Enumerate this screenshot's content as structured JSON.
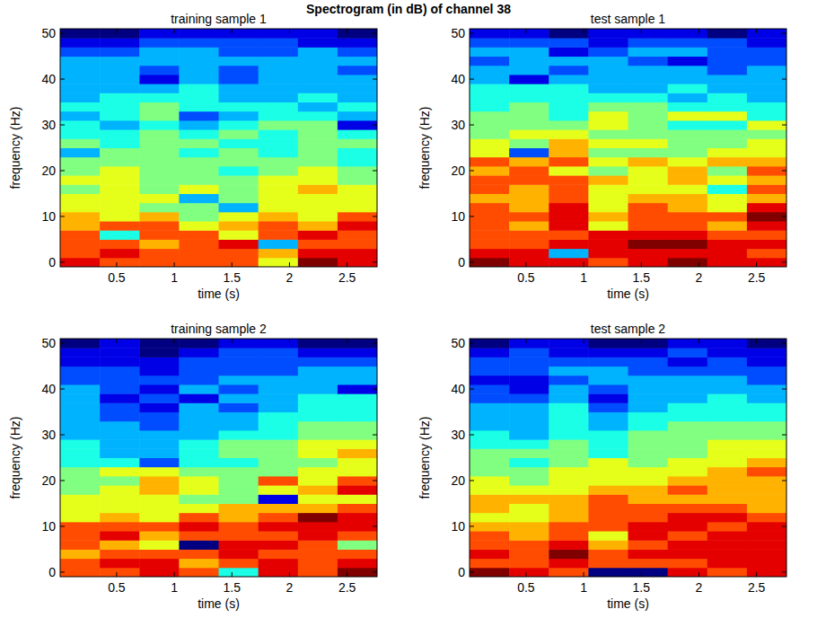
{
  "title": "Spectrogram (in dB) of channel 38",
  "chart_data": [
    {
      "type": "heatmap",
      "title": "training sample 1",
      "x_label": "time (s)",
      "y_label": "frequency (Hz)",
      "x": [
        0.182,
        0.526,
        0.87,
        1.213,
        1.557,
        1.901,
        2.245,
        2.588
      ],
      "y": [
        0,
        2,
        4,
        6,
        8,
        10,
        12,
        14,
        16,
        18,
        20,
        22,
        24,
        26,
        28,
        30,
        32,
        34,
        36,
        38,
        40,
        42,
        44,
        46,
        48,
        50
      ],
      "xlim": [
        0.01,
        2.76
      ],
      "ylim": [
        -1,
        51
      ],
      "xticks": [
        0.5,
        1,
        1.5,
        2,
        2.5
      ],
      "yticks": [
        0,
        10,
        20,
        30,
        40,
        50
      ],
      "color_range": [
        0,
        10
      ],
      "z": [
        [
          9,
          8,
          8,
          8,
          8,
          6,
          10,
          9
        ],
        [
          8,
          9,
          8,
          8,
          8,
          7,
          9,
          9
        ],
        [
          8,
          8,
          7,
          8,
          9,
          3,
          8,
          8
        ],
        [
          8,
          4,
          8,
          8,
          6,
          8,
          9,
          8
        ],
        [
          7,
          8,
          8,
          6,
          7,
          8,
          7,
          9
        ],
        [
          7,
          6,
          7,
          5,
          6,
          7,
          6,
          8
        ],
        [
          6,
          6,
          5,
          5,
          3,
          6,
          6,
          6
        ],
        [
          6,
          6,
          6,
          3,
          5,
          6,
          6,
          6
        ],
        [
          5,
          6,
          5,
          6,
          5,
          6,
          7,
          6
        ],
        [
          6,
          6,
          5,
          5,
          5,
          6,
          6,
          5
        ],
        [
          5,
          6,
          5,
          5,
          4,
          5,
          6,
          5
        ],
        [
          5,
          5,
          5,
          5,
          5,
          5,
          5,
          4
        ],
        [
          3,
          5,
          5,
          4,
          5,
          4,
          5,
          4
        ],
        [
          5,
          4,
          5,
          5,
          4,
          4,
          5,
          5
        ],
        [
          4,
          4,
          5,
          4,
          5,
          4,
          5,
          4
        ],
        [
          4,
          3,
          4,
          3,
          4,
          5,
          5,
          1
        ],
        [
          3,
          4,
          5,
          2,
          3,
          4,
          4,
          3
        ],
        [
          4,
          4,
          5,
          4,
          4,
          4,
          3,
          4
        ],
        [
          3,
          4,
          4,
          4,
          3,
          3,
          4,
          3
        ],
        [
          3,
          3,
          3,
          4,
          3,
          3,
          3,
          3
        ],
        [
          3,
          3,
          1,
          3,
          2,
          3,
          3,
          3
        ],
        [
          3,
          3,
          2,
          3,
          2,
          3,
          3,
          2
        ],
        [
          3,
          3,
          3,
          3,
          3,
          3,
          3,
          3
        ],
        [
          2,
          2,
          3,
          3,
          2,
          2,
          3,
          2
        ],
        [
          1,
          1,
          2,
          2,
          2,
          2,
          1,
          1
        ],
        [
          0,
          0,
          1,
          1,
          1,
          1,
          1,
          0
        ]
      ]
    },
    {
      "type": "heatmap",
      "title": "test sample 1",
      "x_label": "time (s)",
      "y_label": "frequency (Hz)",
      "x": [
        0.182,
        0.526,
        0.87,
        1.213,
        1.557,
        1.901,
        2.245,
        2.588
      ],
      "y": [
        0,
        2,
        4,
        6,
        8,
        10,
        12,
        14,
        16,
        18,
        20,
        22,
        24,
        26,
        28,
        30,
        32,
        34,
        36,
        38,
        40,
        42,
        44,
        46,
        48,
        50
      ],
      "xlim": [
        0.01,
        2.76
      ],
      "ylim": [
        -1,
        51
      ],
      "xticks": [
        0.5,
        1,
        1.5,
        2,
        2.5
      ],
      "yticks": [
        0,
        10,
        20,
        30,
        40,
        50
      ],
      "color_range": [
        0,
        10
      ],
      "z": [
        [
          10,
          9,
          9,
          8,
          9,
          10,
          9,
          9
        ],
        [
          9,
          9,
          3,
          9,
          9,
          9,
          9,
          8
        ],
        [
          8,
          8,
          9,
          9,
          10,
          10,
          9,
          9
        ],
        [
          8,
          8,
          8,
          9,
          9,
          9,
          8,
          8
        ],
        [
          8,
          7,
          9,
          6,
          8,
          8,
          7,
          9
        ],
        [
          8,
          8,
          9,
          7,
          8,
          8,
          8,
          10
        ],
        [
          8,
          7,
          9,
          6,
          8,
          7,
          6,
          9
        ],
        [
          7,
          7,
          8,
          6,
          7,
          7,
          6,
          7
        ],
        [
          8,
          7,
          8,
          6,
          6,
          6,
          4,
          8
        ],
        [
          8,
          8,
          8,
          7,
          6,
          7,
          6,
          7
        ],
        [
          7,
          8,
          6,
          5,
          6,
          7,
          5,
          8
        ],
        [
          8,
          7,
          8,
          6,
          7,
          6,
          7,
          7
        ],
        [
          6,
          2,
          7,
          5,
          5,
          5,
          6,
          6
        ],
        [
          6,
          5,
          7,
          6,
          6,
          5,
          5,
          6
        ],
        [
          5,
          6,
          6,
          5,
          5,
          5,
          5,
          5
        ],
        [
          5,
          5,
          5,
          6,
          5,
          4,
          4,
          6
        ],
        [
          5,
          5,
          4,
          6,
          5,
          6,
          6,
          4
        ],
        [
          4,
          5,
          4,
          5,
          5,
          4,
          4,
          4
        ],
        [
          4,
          4,
          4,
          4,
          4,
          3,
          4,
          3
        ],
        [
          4,
          4,
          4,
          3,
          3,
          4,
          3,
          3
        ],
        [
          3,
          1,
          3,
          3,
          3,
          3,
          3,
          3
        ],
        [
          3,
          3,
          2,
          3,
          3,
          3,
          2,
          3
        ],
        [
          2,
          3,
          3,
          3,
          2,
          1,
          2,
          2
        ],
        [
          3,
          3,
          1,
          2,
          3,
          3,
          2,
          2
        ],
        [
          2,
          2,
          2,
          1,
          2,
          2,
          2,
          1
        ],
        [
          1,
          1,
          0,
          1,
          1,
          1,
          0,
          1
        ]
      ]
    },
    {
      "type": "heatmap",
      "title": "training sample 2",
      "x_label": "time (s)",
      "y_label": "frequency (Hz)",
      "x": [
        0.182,
        0.526,
        0.87,
        1.213,
        1.557,
        1.901,
        2.245,
        2.588
      ],
      "y": [
        0,
        2,
        4,
        6,
        8,
        10,
        12,
        14,
        16,
        18,
        20,
        22,
        24,
        26,
        28,
        30,
        32,
        34,
        36,
        38,
        40,
        42,
        44,
        46,
        48,
        50
      ],
      "xlim": [
        0.01,
        2.76
      ],
      "ylim": [
        -1,
        51
      ],
      "xticks": [
        0.5,
        1,
        1.5,
        2,
        2.5
      ],
      "yticks": [
        0,
        10,
        20,
        30,
        40,
        50
      ],
      "color_range": [
        0,
        10
      ],
      "z": [
        [
          8,
          8,
          9,
          8,
          4,
          9,
          8,
          10
        ],
        [
          8,
          9,
          9,
          7,
          8,
          9,
          8,
          9
        ],
        [
          7,
          8,
          8,
          8,
          9,
          8,
          8,
          8
        ],
        [
          8,
          7,
          6,
          0,
          9,
          9,
          8,
          5
        ],
        [
          8,
          9,
          7,
          8,
          8,
          8,
          9,
          8
        ],
        [
          8,
          8,
          8,
          9,
          8,
          9,
          9,
          9
        ],
        [
          6,
          7,
          6,
          8,
          7,
          8,
          10,
          9
        ],
        [
          6,
          6,
          6,
          6,
          7,
          7,
          7,
          8
        ],
        [
          6,
          6,
          6,
          5,
          5,
          1,
          6,
          6
        ],
        [
          5,
          6,
          7,
          6,
          5,
          6,
          7,
          9
        ],
        [
          5,
          5,
          7,
          6,
          5,
          8,
          6,
          8
        ],
        [
          5,
          6,
          6,
          5,
          5,
          5,
          6,
          6
        ],
        [
          4,
          4,
          2,
          4,
          4,
          5,
          5,
          6
        ],
        [
          4,
          3,
          3,
          4,
          5,
          5,
          6,
          7
        ],
        [
          4,
          3,
          3,
          4,
          5,
          5,
          6,
          6
        ],
        [
          3,
          3,
          3,
          3,
          4,
          4,
          5,
          5
        ],
        [
          3,
          3,
          2,
          3,
          3,
          4,
          5,
          5
        ],
        [
          3,
          2,
          2,
          3,
          3,
          4,
          4,
          4
        ],
        [
          3,
          2,
          1,
          3,
          2,
          3,
          4,
          4
        ],
        [
          3,
          1,
          2,
          1,
          3,
          3,
          4,
          4
        ],
        [
          3,
          2,
          1,
          3,
          2,
          3,
          3,
          1
        ],
        [
          2,
          2,
          2,
          2,
          3,
          3,
          3,
          3
        ],
        [
          2,
          2,
          1,
          2,
          2,
          2,
          3,
          3
        ],
        [
          1,
          1,
          1,
          2,
          2,
          2,
          2,
          2
        ],
        [
          1,
          1,
          0,
          1,
          2,
          2,
          1,
          1
        ],
        [
          0,
          1,
          0,
          0,
          1,
          1,
          0,
          0
        ]
      ]
    },
    {
      "type": "heatmap",
      "title": "test sample 2",
      "x_label": "time (s)",
      "y_label": "frequency (Hz)",
      "x": [
        0.182,
        0.526,
        0.87,
        1.213,
        1.557,
        1.901,
        2.245,
        2.588
      ],
      "y": [
        0,
        2,
        4,
        6,
        8,
        10,
        12,
        14,
        16,
        18,
        20,
        22,
        24,
        26,
        28,
        30,
        32,
        34,
        36,
        38,
        40,
        42,
        44,
        46,
        48,
        50
      ],
      "xlim": [
        0.01,
        2.76
      ],
      "ylim": [
        -1,
        51
      ],
      "xticks": [
        0.5,
        1,
        1.5,
        2,
        2.5
      ],
      "yticks": [
        0,
        10,
        20,
        30,
        40,
        50
      ],
      "color_range": [
        0,
        10
      ],
      "z": [
        [
          10,
          9,
          8,
          0,
          0,
          9,
          8,
          9
        ],
        [
          8,
          8,
          9,
          8,
          8,
          8,
          9,
          9
        ],
        [
          9,
          8,
          10,
          8,
          9,
          9,
          9,
          9
        ],
        [
          8,
          8,
          9,
          7,
          8,
          9,
          9,
          9
        ],
        [
          8,
          7,
          8,
          6,
          9,
          8,
          9,
          9
        ],
        [
          7,
          7,
          8,
          8,
          9,
          9,
          8,
          9
        ],
        [
          6,
          6,
          7,
          8,
          8,
          9,
          9,
          8
        ],
        [
          7,
          6,
          7,
          8,
          8,
          8,
          8,
          7
        ],
        [
          7,
          7,
          7,
          8,
          7,
          7,
          7,
          7
        ],
        [
          6,
          6,
          6,
          7,
          7,
          8,
          7,
          7
        ],
        [
          6,
          5,
          6,
          6,
          6,
          7,
          7,
          7
        ],
        [
          5,
          5,
          6,
          6,
          6,
          6,
          7,
          8
        ],
        [
          5,
          4,
          5,
          6,
          5,
          6,
          6,
          7
        ],
        [
          5,
          5,
          5,
          4,
          5,
          5,
          6,
          6
        ],
        [
          4,
          4,
          5,
          4,
          5,
          5,
          6,
          6
        ],
        [
          4,
          3,
          4,
          4,
          5,
          5,
          5,
          5
        ],
        [
          3,
          3,
          4,
          3,
          4,
          5,
          5,
          5
        ],
        [
          3,
          3,
          4,
          3,
          4,
          4,
          4,
          4
        ],
        [
          3,
          3,
          4,
          2,
          3,
          4,
          4,
          4
        ],
        [
          2,
          2,
          3,
          1,
          3,
          3,
          4,
          3
        ],
        [
          2,
          1,
          3,
          2,
          3,
          3,
          3,
          3
        ],
        [
          1,
          1,
          2,
          3,
          3,
          3,
          3,
          2
        ],
        [
          2,
          2,
          3,
          3,
          2,
          2,
          2,
          2
        ],
        [
          2,
          2,
          2,
          2,
          2,
          1,
          2,
          1
        ],
        [
          1,
          2,
          1,
          1,
          1,
          2,
          1,
          1
        ],
        [
          0,
          1,
          1,
          0,
          0,
          1,
          1,
          0
        ]
      ]
    }
  ]
}
